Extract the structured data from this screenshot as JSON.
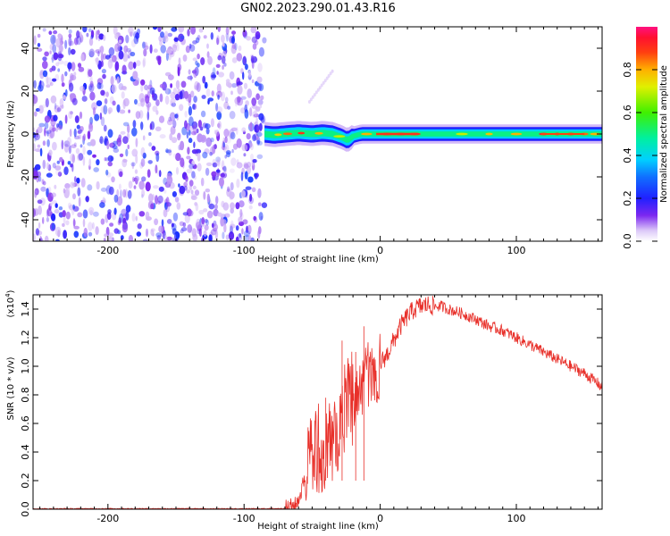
{
  "title": "GN02.2023.290.01.43.R16",
  "chart_data": [
    {
      "type": "heatmap",
      "xlabel": "Height of straight line (km)",
      "ylabel": "Frequency (Hz)",
      "xlim": [
        -255,
        163
      ],
      "ylim": [
        -50,
        50
      ],
      "x_ticks": [
        -200,
        -100,
        0,
        100
      ],
      "y_ticks": [
        -40,
        -20,
        0,
        20,
        40
      ],
      "grid": false,
      "colorbar": {
        "label": "Normalized spectral amplitude",
        "range": [
          0,
          1
        ],
        "ticks": [
          "0.0",
          "0.2",
          "0.4",
          "0.6",
          "0.8"
        ]
      },
      "regions": [
        {
          "x_range": [
            -255,
            -85
          ],
          "y_range": [
            -50,
            50
          ],
          "amplitude_range": [
            0.05,
            0.25
          ]
        },
        {
          "x_range": [
            -85,
            163
          ],
          "y_range": [
            -4,
            4
          ],
          "center_frequency": 0,
          "amplitude_range": [
            0.2,
            1.0
          ]
        }
      ],
      "ridge": {
        "x": [
          -85,
          -78,
          -70,
          -60,
          -50,
          -42,
          -35,
          -28,
          -24,
          -20,
          -14,
          -8,
          0,
          20,
          40,
          60,
          80,
          100,
          120,
          140,
          163
        ],
        "y": [
          0,
          -0.5,
          0,
          0.5,
          0,
          0.5,
          0,
          -1.5,
          -3.0,
          -1.0,
          0,
          0,
          0,
          0,
          0,
          0,
          0,
          0,
          0,
          0,
          0
        ]
      }
    },
    {
      "type": "line",
      "xlabel": "Height of straight line (km)",
      "ylabel": "SNR (10 * v/v)",
      "y_multiplier": "(x10",
      "y_multiplier_exp": "4",
      "y_multiplier_close": ")",
      "xlim": [
        -255,
        163
      ],
      "ylim": [
        0,
        1.5
      ],
      "x_ticks": [
        -200,
        -100,
        0,
        100
      ],
      "y_ticks": [
        "0.0",
        "0.2",
        "0.4",
        "0.6",
        "0.8",
        "1.0",
        "1.2",
        "1.4"
      ],
      "grid": false,
      "color": "#e8302a",
      "series": [
        {
          "x": [
            -255,
            -200,
            -150,
            -100,
            -70,
            -62,
            -58,
            -55,
            -50,
            -45,
            -40,
            -35,
            -30,
            -25,
            -22,
            -18,
            -15,
            -12,
            -10,
            -6,
            -2,
            0,
            5,
            10,
            15,
            20,
            25,
            30,
            35,
            40,
            45,
            50,
            60,
            70,
            80,
            90,
            100,
            110,
            120,
            130,
            140,
            150,
            160,
            163
          ],
          "y": [
            0.003,
            0.004,
            0.004,
            0.003,
            0.005,
            0.03,
            0.12,
            0.25,
            0.35,
            0.4,
            0.42,
            0.48,
            0.55,
            0.7,
            0.75,
            0.78,
            0.83,
            0.9,
            0.95,
            0.98,
            0.99,
            1.02,
            1.08,
            1.18,
            1.28,
            1.35,
            1.4,
            1.42,
            1.43,
            1.42,
            1.42,
            1.4,
            1.37,
            1.33,
            1.28,
            1.25,
            1.2,
            1.15,
            1.1,
            1.05,
            1.0,
            0.95,
            0.88,
            0.85
          ]
        }
      ],
      "noise_amplitude": [
        {
          "x_range": [
            -70,
            -55
          ],
          "amp": 0.06
        },
        {
          "x_range": [
            -55,
            -20
          ],
          "amp": 0.35
        },
        {
          "x_range": [
            -20,
            0
          ],
          "amp": 0.25
        },
        {
          "x_range": [
            0,
            40
          ],
          "amp": 0.07
        },
        {
          "x_range": [
            40,
            163
          ],
          "amp": 0.04
        }
      ]
    }
  ]
}
